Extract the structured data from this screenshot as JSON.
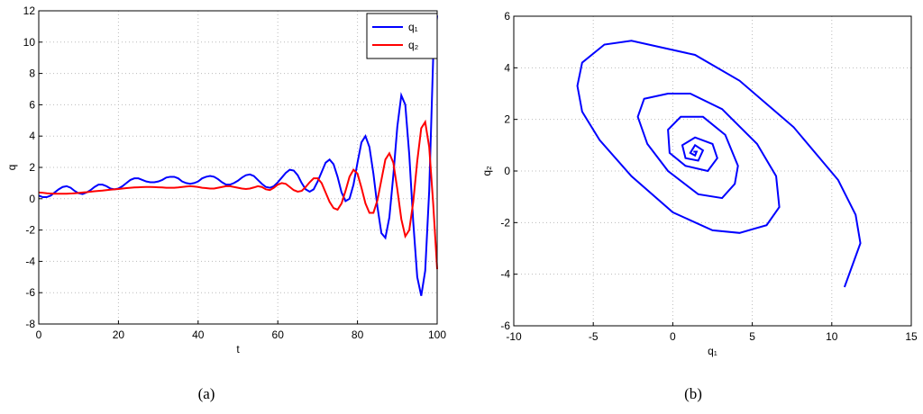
{
  "chart_data": [
    {
      "type": "line",
      "caption": "(a)",
      "x_label": "t",
      "y_label": "q",
      "x": [
        0,
        1,
        2,
        3,
        4,
        5,
        6,
        7,
        8,
        9,
        10,
        11,
        12,
        13,
        14,
        15,
        16,
        17,
        18,
        19,
        20,
        21,
        22,
        23,
        24,
        25,
        26,
        27,
        28,
        29,
        30,
        31,
        32,
        33,
        34,
        35,
        36,
        37,
        38,
        39,
        40,
        41,
        42,
        43,
        44,
        45,
        46,
        47,
        48,
        49,
        50,
        51,
        52,
        53,
        54,
        55,
        56,
        57,
        58,
        59,
        60,
        61,
        62,
        63,
        64,
        65,
        66,
        67,
        68,
        69,
        70,
        71,
        72,
        73,
        74,
        75,
        76,
        77,
        78,
        79,
        80,
        81,
        82,
        83,
        84,
        85,
        86,
        87,
        88,
        89,
        90,
        91,
        92,
        93,
        94,
        95,
        96,
        97,
        98,
        99,
        100
      ],
      "series": [
        {
          "name": "q₁",
          "color": "#0000ff",
          "values": [
            0.2,
            0.1,
            0.1,
            0.2,
            0.4,
            0.6,
            0.75,
            0.8,
            0.7,
            0.5,
            0.35,
            0.3,
            0.4,
            0.55,
            0.75,
            0.9,
            0.9,
            0.8,
            0.65,
            0.6,
            0.65,
            0.8,
            1.0,
            1.2,
            1.3,
            1.3,
            1.2,
            1.1,
            1.05,
            1.05,
            1.1,
            1.2,
            1.35,
            1.4,
            1.4,
            1.3,
            1.1,
            1.0,
            0.95,
            1.0,
            1.1,
            1.3,
            1.4,
            1.45,
            1.4,
            1.25,
            1.05,
            0.9,
            0.9,
            1.0,
            1.15,
            1.35,
            1.5,
            1.55,
            1.45,
            1.2,
            0.95,
            0.75,
            0.7,
            0.8,
            1.05,
            1.35,
            1.65,
            1.85,
            1.8,
            1.5,
            1.0,
            0.6,
            0.45,
            0.6,
            1.1,
            1.7,
            2.3,
            2.5,
            2.2,
            1.4,
            0.4,
            -0.15,
            0.0,
            0.9,
            2.3,
            3.6,
            4.0,
            3.3,
            1.6,
            -0.5,
            -2.2,
            -2.5,
            -1.2,
            1.5,
            4.6,
            6.6,
            6.0,
            2.8,
            -1.5,
            -5.0,
            -6.2,
            -4.6,
            0.5,
            9.0,
            11.7
          ]
        },
        {
          "name": "q₂",
          "color": "#ff0000",
          "values": [
            0.4,
            0.38,
            0.35,
            0.33,
            0.32,
            0.32,
            0.32,
            0.32,
            0.33,
            0.35,
            0.37,
            0.4,
            0.42,
            0.45,
            0.48,
            0.5,
            0.52,
            0.55,
            0.58,
            0.6,
            0.62,
            0.65,
            0.68,
            0.7,
            0.72,
            0.73,
            0.74,
            0.75,
            0.75,
            0.74,
            0.73,
            0.72,
            0.7,
            0.7,
            0.7,
            0.72,
            0.75,
            0.78,
            0.8,
            0.78,
            0.75,
            0.7,
            0.68,
            0.65,
            0.65,
            0.7,
            0.75,
            0.8,
            0.8,
            0.75,
            0.7,
            0.65,
            0.62,
            0.65,
            0.72,
            0.8,
            0.75,
            0.6,
            0.55,
            0.7,
            0.9,
            1.0,
            0.95,
            0.75,
            0.55,
            0.45,
            0.5,
            0.75,
            1.05,
            1.3,
            1.3,
            1.0,
            0.4,
            -0.2,
            -0.6,
            -0.7,
            -0.3,
            0.5,
            1.4,
            1.85,
            1.6,
            0.7,
            -0.3,
            -0.9,
            -0.9,
            -0.1,
            1.2,
            2.5,
            2.9,
            2.3,
            0.6,
            -1.3,
            -2.4,
            -2.0,
            -0.2,
            2.4,
            4.5,
            4.9,
            3.3,
            -0.3,
            -4.5
          ]
        }
      ],
      "xlim": [
        0,
        100
      ],
      "xticks": [
        0,
        20,
        40,
        60,
        80,
        100
      ],
      "ylim": [
        -8,
        12
      ],
      "yticks": [
        -8,
        -6,
        -4,
        -2,
        0,
        2,
        4,
        6,
        8,
        10,
        12
      ],
      "grid": true,
      "legend": "upper right"
    },
    {
      "type": "line",
      "caption": "(b)",
      "x_label": "q₁",
      "y_label": "q₂",
      "x": [
        1.3,
        1.5,
        1.4,
        1.1,
        1.4,
        1.9,
        1.6,
        0.8,
        0.6,
        1.4,
        2.5,
        2.8,
        2.2,
        0.8,
        -0.2,
        -0.3,
        0.5,
        1.9,
        3.3,
        4.1,
        3.9,
        3.1,
        1.6,
        -0.3,
        -1.6,
        -2.2,
        -1.8,
        -0.3,
        1.1,
        3.1,
        5.3,
        6.5,
        6.7,
        5.9,
        4.2,
        2.5,
        0,
        -2.6,
        -4.6,
        -5.7,
        -6,
        -5.7,
        -4.3,
        -2.6,
        1.4,
        4.2,
        7.6,
        10.4,
        11.5,
        11.8,
        10.8
      ],
      "series": [
        {
          "color": "#0000ff",
          "values": [
            0.75,
            0.75,
            0.6,
            0.7,
            1.0,
            0.8,
            0.4,
            0.5,
            1.0,
            1.3,
            1.05,
            0.5,
            0,
            0.2,
            0.7,
            1.6,
            2.1,
            2.1,
            1.4,
            0.2,
            -0.5,
            -1.05,
            -0.9,
            0,
            1.05,
            2.1,
            2.8,
            3.0,
            3.0,
            2.4,
            1.05,
            -0.2,
            -1.4,
            -2.1,
            -2.4,
            -2.3,
            -1.6,
            -0.2,
            1.2,
            2.3,
            3.3,
            4.2,
            4.9,
            5.05,
            4.5,
            3.5,
            1.7,
            -0.35,
            -1.7,
            -2.8,
            -4.5
          ]
        }
      ],
      "xlim": [
        -10,
        15
      ],
      "xticks": [
        -10,
        -5,
        0,
        5,
        10,
        15
      ],
      "ylim": [
        -6,
        6
      ],
      "yticks": [
        -6,
        -4,
        -2,
        0,
        2,
        4,
        6
      ],
      "grid": true
    }
  ]
}
